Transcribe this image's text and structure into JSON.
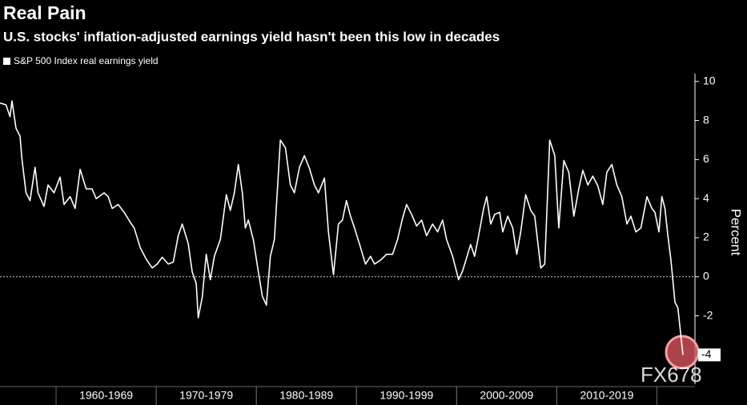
{
  "chart_data": {
    "type": "line",
    "title": "Real Pain",
    "subtitle": "U.S. stocks' inflation-adjusted earnings yield hasn't been this low in decades",
    "y_label": "Percent",
    "watermark": "FX678",
    "xlim": [
      1954.4,
      2023.8
    ],
    "ylim": [
      -5.5,
      10.4
    ],
    "yticks": [
      -2,
      0,
      2,
      4,
      6,
      8,
      10
    ],
    "zero_line": 0,
    "decades": [
      {
        "label": "1960-1969",
        "start": 1960,
        "end": 1970
      },
      {
        "label": "1970-1979",
        "start": 1970,
        "end": 1980
      },
      {
        "label": "1980-1989",
        "start": 1980,
        "end": 1990
      },
      {
        "label": "1990-1999",
        "start": 1990,
        "end": 2000
      },
      {
        "label": "2000-2009",
        "start": 2000,
        "end": 2010
      },
      {
        "label": "2010-2019",
        "start": 2010,
        "end": 2020
      }
    ],
    "x": [
      1954.4,
      1955.0,
      1955.4,
      1955.6,
      1956.0,
      1956.4,
      1956.6,
      1957.0,
      1957.4,
      1957.9,
      1958.2,
      1958.8,
      1959.2,
      1959.8,
      1960.4,
      1960.8,
      1961.4,
      1961.9,
      1962.4,
      1963.0,
      1963.6,
      1964.0,
      1964.8,
      1965.2,
      1965.6,
      1966.2,
      1966.8,
      1967.4,
      1967.8,
      1968.4,
      1969.0,
      1969.6,
      1970.1,
      1970.6,
      1971.2,
      1971.7,
      1972.2,
      1972.6,
      1973.2,
      1973.6,
      1974.0,
      1974.2,
      1974.6,
      1975.0,
      1975.4,
      1975.8,
      1976.4,
      1977.0,
      1977.4,
      1977.8,
      1978.2,
      1978.6,
      1978.9,
      1979.2,
      1979.7,
      1980.2,
      1980.6,
      1981.0,
      1981.4,
      1981.8,
      1982.4,
      1982.9,
      1983.4,
      1983.8,
      1984.3,
      1984.8,
      1985.3,
      1985.8,
      1986.2,
      1986.8,
      1987.2,
      1987.7,
      1988.2,
      1988.6,
      1989.0,
      1989.4,
      1989.8,
      1990.4,
      1990.9,
      1991.4,
      1991.8,
      1992.4,
      1993.0,
      1993.6,
      1994.1,
      1994.6,
      1995.0,
      1995.5,
      1996.0,
      1996.5,
      1997.0,
      1997.6,
      1998.1,
      1998.6,
      1999.0,
      1999.6,
      2000.2,
      2000.6,
      2001.1,
      2001.4,
      2001.8,
      2002.2,
      2002.7,
      2003.0,
      2003.4,
      2003.8,
      2004.3,
      2004.6,
      2005.1,
      2005.6,
      2006.0,
      2006.4,
      2006.9,
      2007.4,
      2007.8,
      2008.4,
      2008.8,
      2009.3,
      2009.8,
      2010.2,
      2010.7,
      2011.2,
      2011.7,
      2012.2,
      2012.6,
      2013.1,
      2013.6,
      2014.1,
      2014.6,
      2015.0,
      2015.5,
      2016.0,
      2016.5,
      2017.0,
      2017.4,
      2017.9,
      2018.4,
      2019.0,
      2019.5,
      2019.8,
      2020.2,
      2020.5,
      2020.8,
      2021.1,
      2021.4,
      2021.8,
      2022.1,
      2022.6
    ],
    "series": [
      {
        "name": "S&P 500 Index real earnings yield",
        "color": "#ffffff",
        "end_label": "-4",
        "values": [
          8.9,
          8.8,
          8.2,
          9.0,
          7.6,
          7.2,
          6.0,
          4.3,
          3.9,
          5.6,
          4.3,
          3.6,
          4.7,
          4.3,
          5.1,
          3.7,
          4.1,
          3.5,
          5.5,
          4.5,
          4.5,
          4.0,
          4.3,
          4.1,
          3.5,
          3.7,
          3.3,
          2.8,
          2.5,
          1.5,
          0.9,
          0.45,
          0.65,
          1.0,
          0.65,
          0.75,
          2.1,
          2.7,
          1.7,
          0.25,
          -0.35,
          -2.1,
          -1.05,
          1.15,
          -0.15,
          1.05,
          1.9,
          4.2,
          3.4,
          4.3,
          5.75,
          4.3,
          2.5,
          2.9,
          1.9,
          0.25,
          -1.0,
          -1.45,
          1.05,
          1.9,
          7.0,
          6.6,
          4.7,
          4.3,
          5.6,
          6.2,
          5.55,
          4.7,
          4.3,
          5.05,
          2.3,
          0.1,
          2.7,
          2.9,
          3.9,
          3.1,
          2.5,
          1.5,
          0.65,
          1.05,
          0.65,
          0.85,
          1.15,
          1.15,
          1.9,
          3.0,
          3.7,
          3.2,
          2.6,
          2.9,
          2.1,
          2.7,
          2.3,
          2.9,
          1.9,
          1.05,
          -0.15,
          0.3,
          1.15,
          1.65,
          1.05,
          2.1,
          3.5,
          4.1,
          2.7,
          3.2,
          3.3,
          2.3,
          3.1,
          2.5,
          1.15,
          2.3,
          4.2,
          3.4,
          3.1,
          0.45,
          0.65,
          7.0,
          6.2,
          2.5,
          5.95,
          5.35,
          3.1,
          4.5,
          5.45,
          4.7,
          5.15,
          4.65,
          3.7,
          5.35,
          5.75,
          4.7,
          4.1,
          2.7,
          3.1,
          2.3,
          2.5,
          4.1,
          3.5,
          3.3,
          2.3,
          4.1,
          3.5,
          2.1,
          0.85,
          -1.3,
          -1.6,
          -4.0
        ]
      }
    ]
  }
}
